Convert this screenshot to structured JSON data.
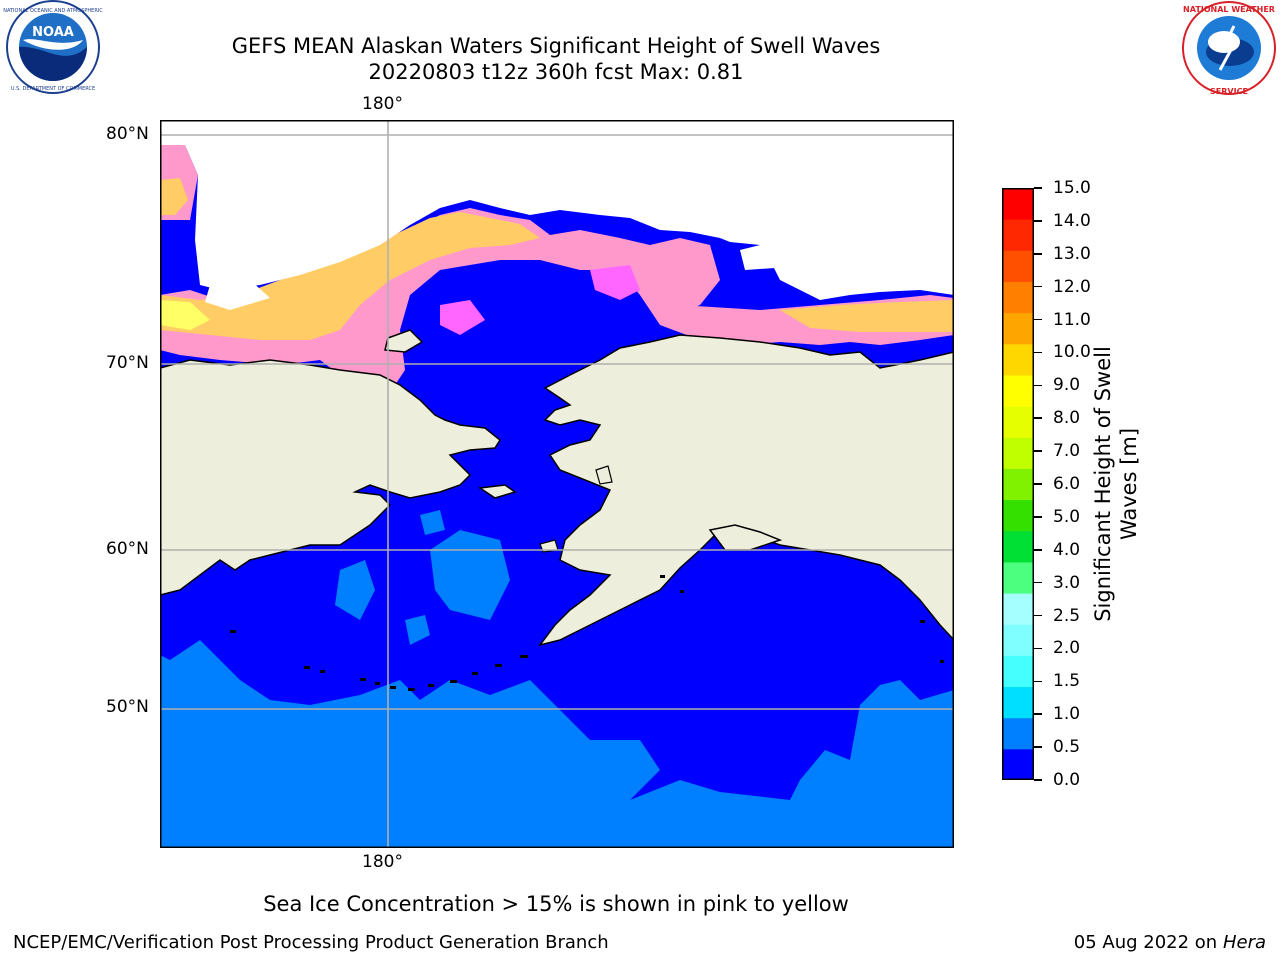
{
  "header": {
    "title_line1": "GEFS MEAN Alaskan Waters Significant Height of Swell Waves",
    "title_line2": "20220803 t12z 360h fcst   Max: 0.81"
  },
  "logos": {
    "left": {
      "name": "NOAA",
      "ring_text": "NATIONAL OCEANIC AND ATMOSPHERIC ADMINISTRATION • U.S. DEPARTMENT OF COMMERCE"
    },
    "right": {
      "name": "NATIONAL WEATHER SERVICE"
    }
  },
  "map": {
    "top_meridian_label": "180°",
    "bottom_meridian_label": "180°",
    "lat_labels": [
      "80°N",
      "70°N",
      "60°N",
      "50°N"
    ],
    "colors": {
      "land": "#eeeedc",
      "ocean_low": "#0000ff",
      "ocean_mid": "#007fff",
      "ice": [
        "#ff66ff",
        "#ff99cc",
        "#ffcc66",
        "#ffff66"
      ],
      "grid": "#b0b0b0"
    }
  },
  "colorbar": {
    "label_line1": "Significant Height of Swell",
    "label_line2": "Waves [m]",
    "ticks": [
      "0.0",
      "0.5",
      "1.0",
      "1.5",
      "2.0",
      "2.5",
      "3.0",
      "4.0",
      "5.0",
      "6.0",
      "7.0",
      "8.0",
      "9.0",
      "10.0",
      "11.0",
      "12.0",
      "13.0",
      "14.0",
      "15.0"
    ],
    "colors": [
      "#0000ff",
      "#007fff",
      "#00dfff",
      "#45ffff",
      "#7fffff",
      "#a6ffff",
      "#4dff7f",
      "#00df33",
      "#33e000",
      "#80f200",
      "#bfff00",
      "#e6ff00",
      "#ffff00",
      "#ffd700",
      "#ffa500",
      "#ff8000",
      "#ff5000",
      "#ff2800",
      "#ff0000"
    ]
  },
  "annotation": "Sea Ice Concentration > 15% is shown in pink to yellow",
  "footer": {
    "left": "NCEP/EMC/Verification Post Processing Product Generation Branch",
    "right_date": "05 Aug 2022 on",
    "right_host": "Hera"
  }
}
